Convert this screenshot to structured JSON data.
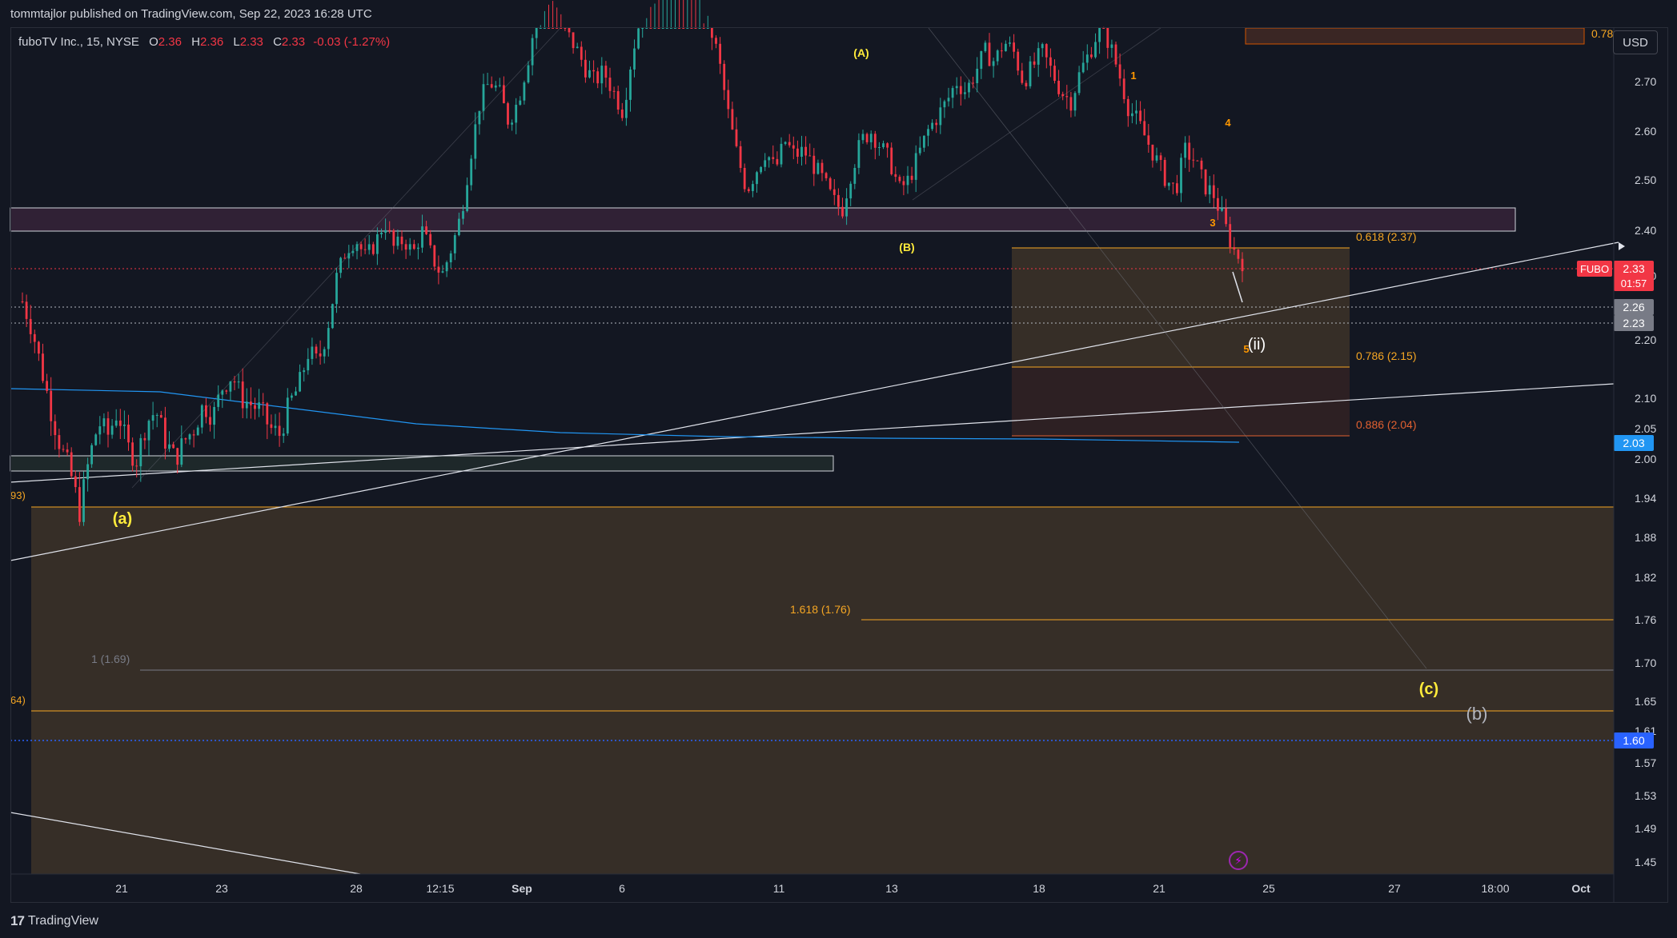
{
  "header": {
    "publish_line": "tommtajlor published on TradingView.com, Sep 22, 2023 16:28 UTC"
  },
  "legend": {
    "symbol": "fuboTV Inc., 15, NYSE",
    "open_label": "O",
    "open": "2.36",
    "high_label": "H",
    "high": "2.36",
    "low_label": "L",
    "low": "2.33",
    "close_label": "C",
    "close": "2.33",
    "change": "-0.03 (-1.27%)"
  },
  "currency": "USD",
  "footer": {
    "brand": "TradingView",
    "logo_text": "17"
  },
  "icons": {
    "lightning": "lightning-icon",
    "logo": "tradingview-logo-icon"
  },
  "colors": {
    "background": "#131722",
    "up": "#26a69a",
    "down": "#f23645",
    "fib_orange": "#f5a623",
    "fib_deep": "#e06030",
    "zone_fill": "#ffb74d",
    "blue_line": "#2196f3",
    "wave_yellow": "#ffeb3b",
    "label_orange": "#ff9800"
  },
  "chart_data": {
    "type": "candlestick",
    "symbol": "FUBO",
    "interval": "15",
    "y_axis": {
      "ticks": [
        "2.70",
        "2.60",
        "2.50",
        "2.40",
        "2.30",
        "2.20",
        "2.10",
        "2.05",
        "2.00",
        "1.94",
        "1.88",
        "1.82",
        "1.76",
        "1.70",
        "1.65",
        "1.61",
        "1.57",
        "1.53",
        "1.49",
        "1.45"
      ],
      "tick_values": [
        2.7,
        2.6,
        2.5,
        2.4,
        2.3,
        2.2,
        2.1,
        2.05,
        2.0,
        1.94,
        1.88,
        1.82,
        1.76,
        1.7,
        1.65,
        1.61,
        1.57,
        1.53,
        1.49,
        1.45
      ],
      "range": [
        1.44,
        2.8
      ]
    },
    "x_axis": {
      "ticks": [
        "21",
        "23",
        "28",
        "12:15",
        "Sep",
        "6",
        "11",
        "13",
        "18",
        "21",
        "25",
        "27",
        "18:00",
        "Oct"
      ]
    },
    "price_badges": [
      {
        "label": "FUBO",
        "value": "2.33",
        "countdown": "01:57",
        "color": "#f23645"
      },
      {
        "value": "2.26",
        "color": "#787b86"
      },
      {
        "value": "2.23",
        "color": "#787b86"
      },
      {
        "value": "2.03",
        "color": "#2196f3"
      },
      {
        "value": "1.60",
        "color": "#2962ff"
      }
    ],
    "fib_levels": [
      {
        "label": "0.618 (2.37)",
        "value": 2.37
      },
      {
        "label": "0.786 (2.15)",
        "value": 2.15
      },
      {
        "label": "0.886 (2.04)",
        "value": 2.04
      },
      {
        "label": "1.618 (1.76)",
        "value": 1.76
      },
      {
        "label": "1 (1.69)",
        "value": 1.69
      },
      {
        "label": "0.78",
        "value": 2.78
      }
    ],
    "edge_labels": [
      "93)",
      "64)"
    ],
    "wave_labels": [
      {
        "text": "(A)",
        "x": "Sep 12",
        "y": 2.76
      },
      {
        "text": "(B)",
        "x": "Sep 13",
        "y": 2.37
      },
      {
        "text": "1",
        "x": "Sep 20",
        "y": 2.67
      },
      {
        "text": "3",
        "x": "Sep 22",
        "y": 2.42
      },
      {
        "text": "4",
        "x": "Sep 22",
        "y": 2.61
      },
      {
        "text": "5",
        "x": "Sep 22",
        "y": 2.18
      },
      {
        "text": "(ii)",
        "x": "Sep 22",
        "y": 2.19
      },
      {
        "text": "(a)",
        "x": "Aug 18",
        "y": 1.91
      },
      {
        "text": "(c)",
        "x": "Sep 27",
        "y": 1.68
      },
      {
        "text": "(b)",
        "x": "Sep 28",
        "y": 1.63
      }
    ],
    "price_path": [
      2.26,
      2.22,
      2.15,
      2.08,
      2.02,
      1.98,
      1.92,
      2.0,
      2.06,
      2.04,
      2.08,
      2.02,
      2.0,
      2.06,
      2.08,
      2.03,
      2.0,
      2.03,
      2.05,
      2.09,
      2.07,
      2.12,
      2.14,
      2.1,
      2.09,
      2.08,
      2.05,
      2.04,
      2.09,
      2.12,
      2.18,
      2.16,
      2.22,
      2.3,
      2.36,
      2.38,
      2.34,
      2.37,
      2.42,
      2.36,
      2.38,
      2.35,
      2.4,
      2.34,
      2.3,
      2.36,
      2.43,
      2.55,
      2.66,
      2.7,
      2.68,
      2.62,
      2.66,
      2.74,
      2.84,
      2.88,
      2.86,
      2.8,
      2.77,
      2.73,
      2.7,
      2.72,
      2.68,
      2.64,
      2.76,
      2.84,
      2.88,
      2.9,
      2.92,
      2.94,
      2.92,
      2.88,
      2.82,
      2.75,
      2.64,
      2.55,
      2.48,
      2.52,
      2.56,
      2.52,
      2.58,
      2.55,
      2.56,
      2.53,
      2.5,
      2.46,
      2.44,
      2.52,
      2.58,
      2.6,
      2.57,
      2.54,
      2.48,
      2.5,
      2.55,
      2.6,
      2.63,
      2.66,
      2.7,
      2.68,
      2.72,
      2.76,
      2.74,
      2.78,
      2.76,
      2.7,
      2.73,
      2.76,
      2.72,
      2.68,
      2.66,
      2.72,
      2.76,
      2.81,
      2.78,
      2.72,
      2.65,
      2.62,
      2.58,
      2.54,
      2.5,
      2.48,
      2.56,
      2.54,
      2.49,
      2.47,
      2.42,
      2.36,
      2.33
    ]
  }
}
